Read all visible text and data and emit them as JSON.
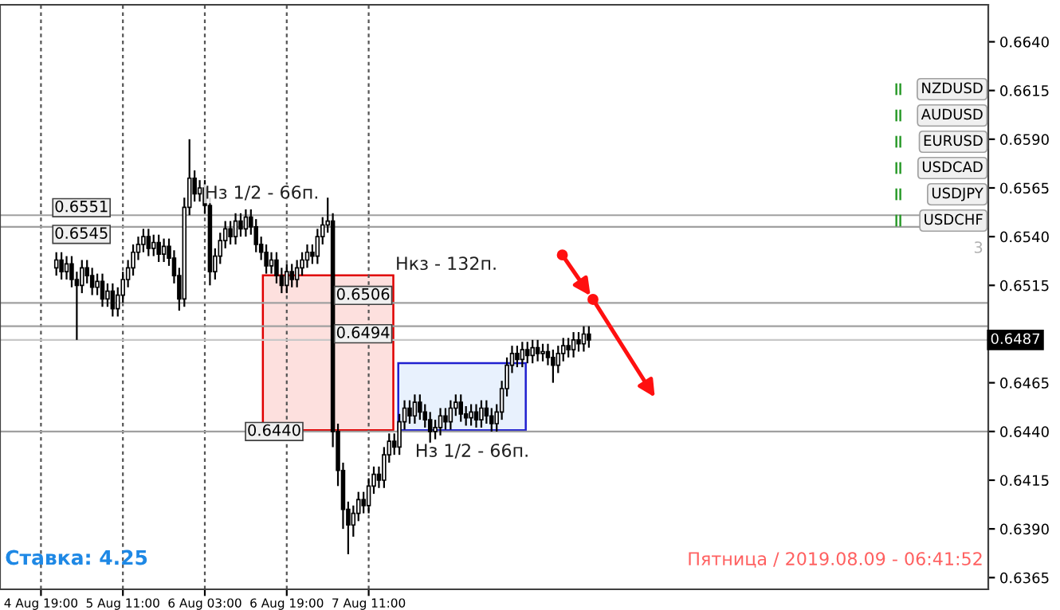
{
  "chart_data": {
    "type": "candlestick",
    "color": "#000000",
    "x": [
      "2019-08-04T22:00",
      "2019-08-04T23:00",
      "2019-08-05T00:00",
      "2019-08-05T01:00",
      "2019-08-05T02:00",
      "2019-08-05T03:00",
      "2019-08-05T04:00",
      "2019-08-05T05:00",
      "2019-08-05T06:00",
      "2019-08-05T07:00",
      "2019-08-05T08:00",
      "2019-08-05T09:00",
      "2019-08-05T10:00",
      "2019-08-05T11:00",
      "2019-08-05T12:00",
      "2019-08-05T13:00",
      "2019-08-05T14:00",
      "2019-08-05T15:00",
      "2019-08-05T16:00",
      "2019-08-05T17:00",
      "2019-08-05T18:00",
      "2019-08-05T19:00",
      "2019-08-05T20:00",
      "2019-08-05T21:00",
      "2019-08-05T22:00",
      "2019-08-05T23:00",
      "2019-08-06T00:00",
      "2019-08-06T01:00",
      "2019-08-06T02:00",
      "2019-08-06T03:00",
      "2019-08-06T04:00",
      "2019-08-06T05:00",
      "2019-08-06T06:00",
      "2019-08-06T07:00",
      "2019-08-06T08:00",
      "2019-08-06T09:00",
      "2019-08-06T10:00",
      "2019-08-06T11:00",
      "2019-08-06T12:00",
      "2019-08-06T13:00",
      "2019-08-06T14:00",
      "2019-08-06T15:00",
      "2019-08-06T16:00",
      "2019-08-06T17:00",
      "2019-08-06T18:00",
      "2019-08-06T19:00",
      "2019-08-06T20:00",
      "2019-08-06T21:00",
      "2019-08-06T22:00",
      "2019-08-06T23:00",
      "2019-08-07T00:00",
      "2019-08-07T01:00",
      "2019-08-07T02:00",
      "2019-08-07T03:00",
      "2019-08-07T04:00",
      "2019-08-07T05:00",
      "2019-08-07T06:00",
      "2019-08-07T07:00",
      "2019-08-07T08:00",
      "2019-08-07T09:00",
      "2019-08-07T10:00",
      "2019-08-07T11:00",
      "2019-08-07T12:00",
      "2019-08-07T13:00",
      "2019-08-07T14:00",
      "2019-08-07T15:00",
      "2019-08-07T16:00",
      "2019-08-07T17:00",
      "2019-08-07T18:00",
      "2019-08-07T19:00",
      "2019-08-07T20:00",
      "2019-08-07T21:00",
      "2019-08-07T22:00",
      "2019-08-07T23:00",
      "2019-08-08T00:00",
      "2019-08-08T01:00",
      "2019-08-08T02:00",
      "2019-08-08T03:00",
      "2019-08-08T04:00",
      "2019-08-08T05:00",
      "2019-08-08T06:00",
      "2019-08-08T07:00",
      "2019-08-08T08:00",
      "2019-08-08T09:00",
      "2019-08-08T10:00",
      "2019-08-08T11:00",
      "2019-08-08T12:00",
      "2019-08-08T13:00",
      "2019-08-08T14:00",
      "2019-08-08T15:00",
      "2019-08-08T16:00",
      "2019-08-08T17:00",
      "2019-08-08T18:00",
      "2019-08-08T19:00",
      "2019-08-08T20:00",
      "2019-08-08T21:00",
      "2019-08-08T22:00",
      "2019-08-08T23:00",
      "2019-08-09T00:00",
      "2019-08-09T01:00",
      "2019-08-09T02:00",
      "2019-08-09T03:00",
      "2019-08-09T04:00",
      "2019-08-09T05:00",
      "2019-08-09T06:00"
    ],
    "ohlc": [
      [
        0.6524,
        0.6532,
        0.652,
        0.6528
      ],
      [
        0.6528,
        0.6532,
        0.6518,
        0.6522
      ],
      [
        0.6522,
        0.653,
        0.6518,
        0.6526
      ],
      [
        0.6526,
        0.653,
        0.6514,
        0.6518
      ],
      [
        0.6518,
        0.6522,
        0.6487,
        0.6515
      ],
      [
        0.6515,
        0.6528,
        0.6511,
        0.6524
      ],
      [
        0.6524,
        0.6528,
        0.6516,
        0.652
      ],
      [
        0.652,
        0.6524,
        0.651,
        0.6514
      ],
      [
        0.6514,
        0.6521,
        0.651,
        0.6517
      ],
      [
        0.6517,
        0.6521,
        0.6504,
        0.6508
      ],
      [
        0.6508,
        0.6516,
        0.6504,
        0.6512
      ],
      [
        0.6512,
        0.6516,
        0.6499,
        0.6503
      ],
      [
        0.6503,
        0.6514,
        0.6499,
        0.651
      ],
      [
        0.651,
        0.6522,
        0.6506,
        0.6518
      ],
      [
        0.6518,
        0.6528,
        0.6514,
        0.6524
      ],
      [
        0.6524,
        0.6536,
        0.652,
        0.6532
      ],
      [
        0.6532,
        0.654,
        0.6528,
        0.6536
      ],
      [
        0.6536,
        0.6544,
        0.6532,
        0.654
      ],
      [
        0.654,
        0.6544,
        0.653,
        0.6534
      ],
      [
        0.6534,
        0.6541,
        0.653,
        0.6537
      ],
      [
        0.6537,
        0.6541,
        0.6527,
        0.6531
      ],
      [
        0.6531,
        0.6539,
        0.6527,
        0.6535
      ],
      [
        0.6535,
        0.6539,
        0.6525,
        0.6529
      ],
      [
        0.6529,
        0.6533,
        0.6516,
        0.652
      ],
      [
        0.652,
        0.6524,
        0.6502,
        0.6508
      ],
      [
        0.6508,
        0.656,
        0.6504,
        0.6555
      ],
      [
        0.6555,
        0.659,
        0.6551,
        0.657
      ],
      [
        0.657,
        0.6574,
        0.6558,
        0.6562
      ],
      [
        0.6562,
        0.6569,
        0.6558,
        0.6565
      ],
      [
        0.6565,
        0.6569,
        0.6552,
        0.6556
      ],
      [
        0.6556,
        0.656,
        0.6515,
        0.6522
      ],
      [
        0.6522,
        0.6534,
        0.6518,
        0.653
      ],
      [
        0.653,
        0.6542,
        0.6526,
        0.6538
      ],
      [
        0.6538,
        0.6548,
        0.6534,
        0.6544
      ],
      [
        0.6544,
        0.6548,
        0.6536,
        0.654
      ],
      [
        0.654,
        0.6552,
        0.6536,
        0.6548
      ],
      [
        0.6548,
        0.6552,
        0.654,
        0.6544
      ],
      [
        0.6544,
        0.6554,
        0.654,
        0.655
      ],
      [
        0.655,
        0.6554,
        0.6541,
        0.6545
      ],
      [
        0.6545,
        0.6549,
        0.6532,
        0.6536
      ],
      [
        0.6536,
        0.654,
        0.6528,
        0.6532
      ],
      [
        0.6532,
        0.6536,
        0.6521,
        0.6525
      ],
      [
        0.6525,
        0.6532,
        0.6521,
        0.6528
      ],
      [
        0.6528,
        0.6532,
        0.6516,
        0.652
      ],
      [
        0.652,
        0.6524,
        0.6511,
        0.6515
      ],
      [
        0.6515,
        0.6526,
        0.6511,
        0.6522
      ],
      [
        0.6522,
        0.6526,
        0.6514,
        0.6518
      ],
      [
        0.6518,
        0.6528,
        0.6514,
        0.6524
      ],
      [
        0.6524,
        0.6532,
        0.652,
        0.6528
      ],
      [
        0.6528,
        0.6536,
        0.6524,
        0.6532
      ],
      [
        0.6532,
        0.6536,
        0.6526,
        0.653
      ],
      [
        0.653,
        0.6544,
        0.6526,
        0.654
      ],
      [
        0.654,
        0.655,
        0.6536,
        0.6546
      ],
      [
        0.6546,
        0.656,
        0.6542,
        0.6548
      ],
      [
        0.6548,
        0.6552,
        0.6432,
        0.644
      ],
      [
        0.644,
        0.6444,
        0.6412,
        0.642
      ],
      [
        0.642,
        0.6424,
        0.639,
        0.64
      ],
      [
        0.64,
        0.6404,
        0.6377,
        0.6392
      ],
      [
        0.6392,
        0.6402,
        0.6386,
        0.6398
      ],
      [
        0.6398,
        0.6409,
        0.6394,
        0.6405
      ],
      [
        0.6405,
        0.6409,
        0.6398,
        0.6402
      ],
      [
        0.6402,
        0.6416,
        0.6398,
        0.6412
      ],
      [
        0.6412,
        0.6422,
        0.6408,
        0.6418
      ],
      [
        0.6418,
        0.6422,
        0.6411,
        0.6415
      ],
      [
        0.6415,
        0.6432,
        0.6411,
        0.6428
      ],
      [
        0.6428,
        0.6439,
        0.6424,
        0.6435
      ],
      [
        0.6435,
        0.6439,
        0.6428,
        0.6432
      ],
      [
        0.6432,
        0.6449,
        0.6428,
        0.6445
      ],
      [
        0.6445,
        0.6456,
        0.6441,
        0.6452
      ],
      [
        0.6452,
        0.6456,
        0.6444,
        0.6448
      ],
      [
        0.6448,
        0.6459,
        0.6444,
        0.6455
      ],
      [
        0.6455,
        0.6459,
        0.6446,
        0.645
      ],
      [
        0.645,
        0.6454,
        0.6442,
        0.6446
      ],
      [
        0.6446,
        0.645,
        0.6434,
        0.644
      ],
      [
        0.644,
        0.6446,
        0.6436,
        0.6442
      ],
      [
        0.6442,
        0.6452,
        0.6438,
        0.6448
      ],
      [
        0.6448,
        0.6452,
        0.6441,
        0.6445
      ],
      [
        0.6445,
        0.6456,
        0.6441,
        0.6452
      ],
      [
        0.6452,
        0.6459,
        0.6448,
        0.6455
      ],
      [
        0.6455,
        0.6459,
        0.6445,
        0.6449
      ],
      [
        0.6449,
        0.6453,
        0.6443,
        0.6447
      ],
      [
        0.6447,
        0.6454,
        0.6443,
        0.645
      ],
      [
        0.645,
        0.6454,
        0.6442,
        0.6446
      ],
      [
        0.6446,
        0.6456,
        0.6442,
        0.6452
      ],
      [
        0.6452,
        0.6456,
        0.6444,
        0.6448
      ],
      [
        0.6448,
        0.6452,
        0.644,
        0.6444
      ],
      [
        0.6444,
        0.6454,
        0.644,
        0.645
      ],
      [
        0.645,
        0.6466,
        0.6446,
        0.6462
      ],
      [
        0.6462,
        0.6478,
        0.6458,
        0.6474
      ],
      [
        0.6474,
        0.6484,
        0.647,
        0.648
      ],
      [
        0.648,
        0.6484,
        0.6473,
        0.6477
      ],
      [
        0.6477,
        0.6486,
        0.6473,
        0.6482
      ],
      [
        0.6482,
        0.6486,
        0.6475,
        0.6479
      ],
      [
        0.6479,
        0.6487,
        0.6475,
        0.6483
      ],
      [
        0.6483,
        0.6487,
        0.6476,
        0.648
      ],
      [
        0.648,
        0.6485,
        0.6476,
        0.6481
      ],
      [
        0.6481,
        0.6485,
        0.6474,
        0.6478
      ],
      [
        0.6478,
        0.6482,
        0.6465,
        0.6474
      ],
      [
        0.6474,
        0.6484,
        0.647,
        0.648
      ],
      [
        0.648,
        0.6488,
        0.6476,
        0.6484
      ],
      [
        0.6484,
        0.6488,
        0.6478,
        0.6482
      ],
      [
        0.6482,
        0.6491,
        0.6478,
        0.6487
      ],
      [
        0.6487,
        0.6491,
        0.6481,
        0.6485
      ],
      [
        0.6485,
        0.6494,
        0.6481,
        0.649
      ],
      [
        0.649,
        0.6494,
        0.6483,
        0.6487
      ]
    ],
    "xlim": [
      "2019-08-04T11:00",
      "2019-08-12T12:00"
    ],
    "xticks": [
      {
        "value": "2019-08-04T19:00",
        "label": "4 Aug 19:00"
      },
      {
        "value": "2019-08-05T11:00",
        "label": "5 Aug 11:00"
      },
      {
        "value": "2019-08-06T03:00",
        "label": "6 Aug 03:00"
      },
      {
        "value": "2019-08-06T19:00",
        "label": "6 Aug 19:00"
      },
      {
        "value": "2019-08-07T11:00",
        "label": "7 Aug 11:00"
      }
    ],
    "ylim": [
      0.6359,
      0.6659
    ],
    "yticks": [
      {
        "value": 0.664,
        "label": "0.6640"
      },
      {
        "value": 0.6615,
        "label": "0.6615"
      },
      {
        "value": 0.659,
        "label": "0.6590"
      },
      {
        "value": 0.6565,
        "label": "0.6565"
      },
      {
        "value": 0.654,
        "label": "0.6540"
      },
      {
        "value": 0.6515,
        "label": "0.6515"
      },
      {
        "value": 0.6465,
        "label": "0.6465"
      },
      {
        "value": 0.644,
        "label": "0.6440"
      },
      {
        "value": 0.6415,
        "label": "0.6415"
      },
      {
        "value": 0.639,
        "label": "0.6390"
      },
      {
        "value": 0.6365,
        "label": "0.6365"
      }
    ],
    "grid": "x",
    "ref_lines": [
      {
        "axis": "y",
        "value": 0.6551,
        "label": "0.6551",
        "color": "#a0a0a0"
      },
      {
        "axis": "y",
        "value": 0.6545,
        "label": "0.6545",
        "color": "#a0a0a0"
      },
      {
        "axis": "y",
        "value": 0.6506,
        "label": "0.6506",
        "color": "#a0a0a0"
      },
      {
        "axis": "y",
        "value": 0.6494,
        "label": "0.6494",
        "color": "#a0a0a0"
      },
      {
        "axis": "y",
        "value": 0.644,
        "label": "0.6440",
        "color": "#a0a0a0"
      },
      {
        "axis": "y",
        "value": 0.6487,
        "label": "0.6487",
        "color": "#c8c8c8"
      }
    ],
    "annotations": [
      {
        "text": "Нз 1/2 - 66п.",
        "x": "2019-08-06T03:00",
        "y": 0.6562
      },
      "Нкз - 132п.",
      "Нз 1/2 - 66п.",
      "NZDUSD",
      "AUDUSD",
      "EURUSD",
      "USDCAD",
      "USDJPY",
      "USDCHF",
      "3",
      "Ставка: 4.25",
      "Пятница / 2019.08.09 - 06:41:52"
    ]
  }
}
